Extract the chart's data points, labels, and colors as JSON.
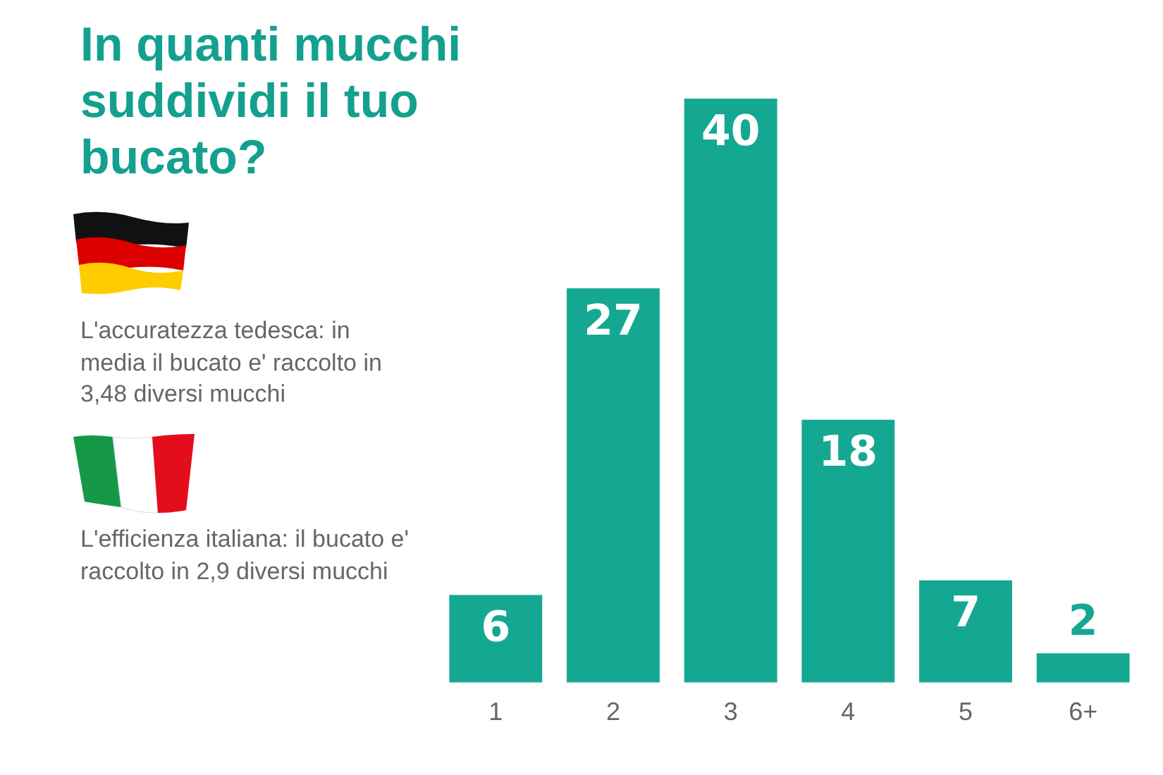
{
  "chart_data": {
    "type": "bar",
    "title": "In quanti mucchi suddividi il tuo bucato?",
    "categories": [
      "1",
      "2",
      "3",
      "4",
      "5",
      "6+"
    ],
    "values": [
      6,
      27,
      40,
      18,
      7,
      2
    ],
    "color": "#14a893",
    "data_labels": true,
    "tick_labels": "x",
    "annotations": [
      "L'accuratezza tedesca: in media il bucato e' raccolto in 3,48 diversi mucchi",
      "L'efficienza italiana: il bucato e' raccolto in 2,9 diversi mucchi"
    ]
  }
}
